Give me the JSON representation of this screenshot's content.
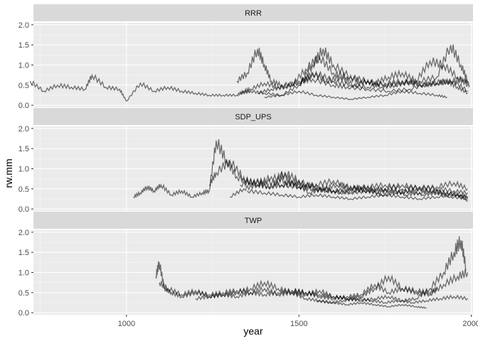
{
  "chart_data": {
    "type": "line",
    "facet_layout": "vertical",
    "xlabel": "year",
    "ylabel": "rw.mm",
    "xlim": [
      730,
      2005
    ],
    "ylim": [
      -0.05,
      2.05
    ],
    "x_ticks": [
      1000,
      1500,
      2000
    ],
    "x_tick_labels": [
      "1000",
      "1500",
      "2000"
    ],
    "y_ticks": [
      0.0,
      0.5,
      1.0,
      1.5,
      2.0
    ],
    "y_tick_labels": [
      "0.0",
      "0.5",
      "1.0",
      "1.5",
      "2.0"
    ],
    "line_color": "#000000",
    "line_opacity": 0.55,
    "panel_background": "#ebebeb",
    "strip_background": "#d9d9d9",
    "grid": true,
    "facets": [
      {
        "name": "RRR",
        "series": [
          {
            "x": [
              720,
              760,
              800,
              840,
              880,
              900,
              940,
              980,
              1000,
              1040,
              1080,
              1120,
              1160,
              1200,
              1240,
              1280,
              1320,
              1340,
              1360,
              1400,
              1440,
              1480,
              1520,
              1560,
              1600,
              1640,
              1680,
              1720,
              1760,
              1800,
              1840,
              1880,
              1920,
              1960,
              1990
            ],
            "y": [
              0.6,
              0.35,
              0.5,
              0.45,
              0.4,
              0.75,
              0.45,
              0.4,
              0.1,
              0.55,
              0.35,
              0.45,
              0.35,
              0.3,
              0.25,
              0.25,
              0.25,
              0.35,
              0.4,
              0.55,
              0.45,
              0.5,
              0.9,
              1.2,
              0.8,
              0.7,
              0.6,
              0.55,
              0.7,
              0.8,
              0.6,
              1.1,
              1.0,
              0.7,
              0.5
            ]
          },
          {
            "x": [
              1320,
              1350,
              1380,
              1400,
              1420,
              1450,
              1500,
              1550,
              1600,
              1650,
              1700,
              1750,
              1800,
              1850,
              1900,
              1950,
              1990
            ],
            "y": [
              0.6,
              0.8,
              1.4,
              1.0,
              0.6,
              0.5,
              0.55,
              0.8,
              0.6,
              0.5,
              0.45,
              0.55,
              0.6,
              0.5,
              0.55,
              0.6,
              0.35
            ]
          },
          {
            "x": [
              1330,
              1360,
              1400,
              1450,
              1500,
              1540,
              1570,
              1600,
              1650,
              1700,
              1750,
              1800,
              1850,
              1900,
              1940,
              1970,
              1990
            ],
            "y": [
              0.3,
              0.35,
              0.3,
              0.25,
              0.5,
              1.0,
              1.4,
              1.0,
              0.7,
              0.6,
              0.5,
              0.55,
              0.6,
              0.7,
              1.5,
              1.0,
              0.6
            ]
          },
          {
            "x": [
              1380,
              1420,
              1460,
              1500,
              1540,
              1600,
              1640,
              1700,
              1760,
              1820,
              1880,
              1930,
              1960,
              1990
            ],
            "y": [
              0.3,
              0.4,
              0.45,
              0.6,
              0.65,
              0.5,
              0.45,
              0.4,
              0.35,
              0.4,
              0.55,
              0.6,
              0.45,
              0.3
            ]
          },
          {
            "x": [
              1400,
              1450,
              1500,
              1550,
              1600,
              1650,
              1700,
              1750,
              1800,
              1850,
              1900,
              1930
            ],
            "y": [
              0.2,
              0.25,
              0.35,
              0.25,
              0.2,
              0.15,
              0.2,
              0.25,
              0.35,
              0.3,
              0.25,
              0.2
            ]
          },
          {
            "x": [
              1500,
              1540,
              1580,
              1620,
              1660,
              1700,
              1740,
              1780,
              1820,
              1860,
              1900,
              1940,
              1980,
              1995
            ],
            "y": [
              0.5,
              0.8,
              0.6,
              0.7,
              0.5,
              0.6,
              0.45,
              0.5,
              0.6,
              0.5,
              0.55,
              0.6,
              0.65,
              0.5
            ]
          }
        ]
      },
      {
        "name": "SDP_UPS",
        "series": [
          {
            "x": [
              1020,
              1040,
              1060,
              1080,
              1100,
              1130,
              1160,
              1190,
              1220,
              1240,
              1260,
              1290,
              1320,
              1360,
              1400,
              1450,
              1500,
              1550,
              1600,
              1650,
              1700,
              1750,
              1800,
              1850,
              1900,
              1950,
              1990
            ],
            "y": [
              0.3,
              0.4,
              0.55,
              0.45,
              0.6,
              0.35,
              0.45,
              0.3,
              0.4,
              0.45,
              1.7,
              1.2,
              0.8,
              0.65,
              0.7,
              0.6,
              0.55,
              0.6,
              0.7,
              0.5,
              0.55,
              0.6,
              0.5,
              0.55,
              0.5,
              0.45,
              0.4
            ]
          },
          {
            "x": [
              1240,
              1260,
              1300,
              1340,
              1380,
              1420,
              1460,
              1500,
              1550,
              1600,
              1650,
              1700,
              1750,
              1800,
              1850,
              1900,
              1950,
              1990
            ],
            "y": [
              0.6,
              0.9,
              1.2,
              0.75,
              0.6,
              0.55,
              0.9,
              0.7,
              0.5,
              0.45,
              0.4,
              0.45,
              0.5,
              0.6,
              0.5,
              0.55,
              0.65,
              0.5
            ]
          },
          {
            "x": [
              1300,
              1340,
              1380,
              1420,
              1460,
              1500,
              1540,
              1580,
              1620,
              1660,
              1700,
              1740,
              1780,
              1820,
              1860,
              1900,
              1940,
              1990
            ],
            "y": [
              0.3,
              0.5,
              0.6,
              0.8,
              0.7,
              0.55,
              0.5,
              0.45,
              0.4,
              0.45,
              0.5,
              0.35,
              0.4,
              0.45,
              0.35,
              0.4,
              0.3,
              0.25
            ]
          },
          {
            "x": [
              1330,
              1370,
              1410,
              1450,
              1490,
              1530,
              1570,
              1610,
              1650,
              1690,
              1730,
              1770,
              1810,
              1850,
              1890,
              1930,
              1970,
              1990
            ],
            "y": [
              0.6,
              0.7,
              0.55,
              0.6,
              0.65,
              0.4,
              0.5,
              0.6,
              0.55,
              0.45,
              0.4,
              0.5,
              0.35,
              0.4,
              0.45,
              0.4,
              0.35,
              0.3
            ]
          },
          {
            "x": [
              1350,
              1400,
              1450,
              1500,
              1550,
              1600,
              1650,
              1700,
              1750,
              1800,
              1850,
              1900,
              1950,
              1990
            ],
            "y": [
              0.45,
              0.4,
              0.35,
              0.3,
              0.35,
              0.3,
              0.25,
              0.3,
              0.35,
              0.3,
              0.25,
              0.3,
              0.35,
              0.3
            ]
          },
          {
            "x": [
              1440,
              1480,
              1520,
              1560,
              1600,
              1640,
              1680,
              1720,
              1760,
              1800,
              1840,
              1880,
              1920,
              1960,
              1990
            ],
            "y": [
              0.9,
              0.7,
              0.6,
              0.55,
              0.45,
              0.5,
              0.55,
              0.5,
              0.45,
              0.4,
              0.5,
              0.45,
              0.4,
              0.35,
              0.2
            ]
          }
        ]
      },
      {
        "name": "TWP",
        "series": [
          {
            "x": [
              1085,
              1095,
              1110,
              1130,
              1160,
              1200,
              1240,
              1280,
              1320,
              1360,
              1400,
              1440,
              1480,
              1520,
              1560,
              1600,
              1640,
              1680,
              1720,
              1760,
              1800,
              1840,
              1880,
              1900
            ],
            "y": [
              0.9,
              1.25,
              0.6,
              0.5,
              0.4,
              0.5,
              0.45,
              0.5,
              0.55,
              0.5,
              0.45,
              0.5,
              0.55,
              0.5,
              0.4,
              0.35,
              0.4,
              0.45,
              0.7,
              0.5,
              0.6,
              0.55,
              0.5,
              0.6
            ]
          },
          {
            "x": [
              1095,
              1120,
              1160,
              1200,
              1240,
              1280,
              1320,
              1360,
              1400,
              1440,
              1480,
              1520,
              1560,
              1600,
              1640,
              1680,
              1720,
              1760,
              1800,
              1840,
              1880,
              1920,
              1950,
              1970,
              1985
            ],
            "y": [
              0.75,
              0.6,
              0.45,
              0.55,
              0.4,
              0.45,
              0.5,
              0.6,
              0.75,
              0.6,
              0.5,
              0.45,
              0.55,
              0.4,
              0.35,
              0.3,
              0.35,
              0.4,
              0.3,
              0.35,
              0.6,
              1.0,
              1.5,
              1.8,
              1.1
            ]
          },
          {
            "x": [
              1200,
              1240,
              1280,
              1320,
              1360,
              1400,
              1440,
              1480,
              1520,
              1560,
              1600,
              1640,
              1680,
              1720,
              1760,
              1800,
              1840,
              1870
            ],
            "y": [
              0.35,
              0.4,
              0.45,
              0.4,
              0.5,
              0.6,
              0.45,
              0.5,
              0.35,
              0.3,
              0.25,
              0.2,
              0.25,
              0.2,
              0.15,
              0.2,
              0.15,
              0.12
            ]
          },
          {
            "x": [
              1480,
              1520,
              1560,
              1600,
              1640,
              1680,
              1720,
              1760,
              1800,
              1840,
              1880,
              1920,
              1960,
              1990
            ],
            "y": [
              0.55,
              0.5,
              0.45,
              0.4,
              0.35,
              0.4,
              0.6,
              0.9,
              0.6,
              0.5,
              0.45,
              0.7,
              0.9,
              1.0
            ]
          },
          {
            "x": [
              1550,
              1590,
              1630,
              1670,
              1710,
              1750,
              1790,
              1830,
              1870,
              1910,
              1950,
              1990
            ],
            "y": [
              0.3,
              0.25,
              0.3,
              0.35,
              0.3,
              0.25,
              0.3,
              0.25,
              0.3,
              0.35,
              0.4,
              0.35
            ]
          }
        ]
      }
    ]
  }
}
